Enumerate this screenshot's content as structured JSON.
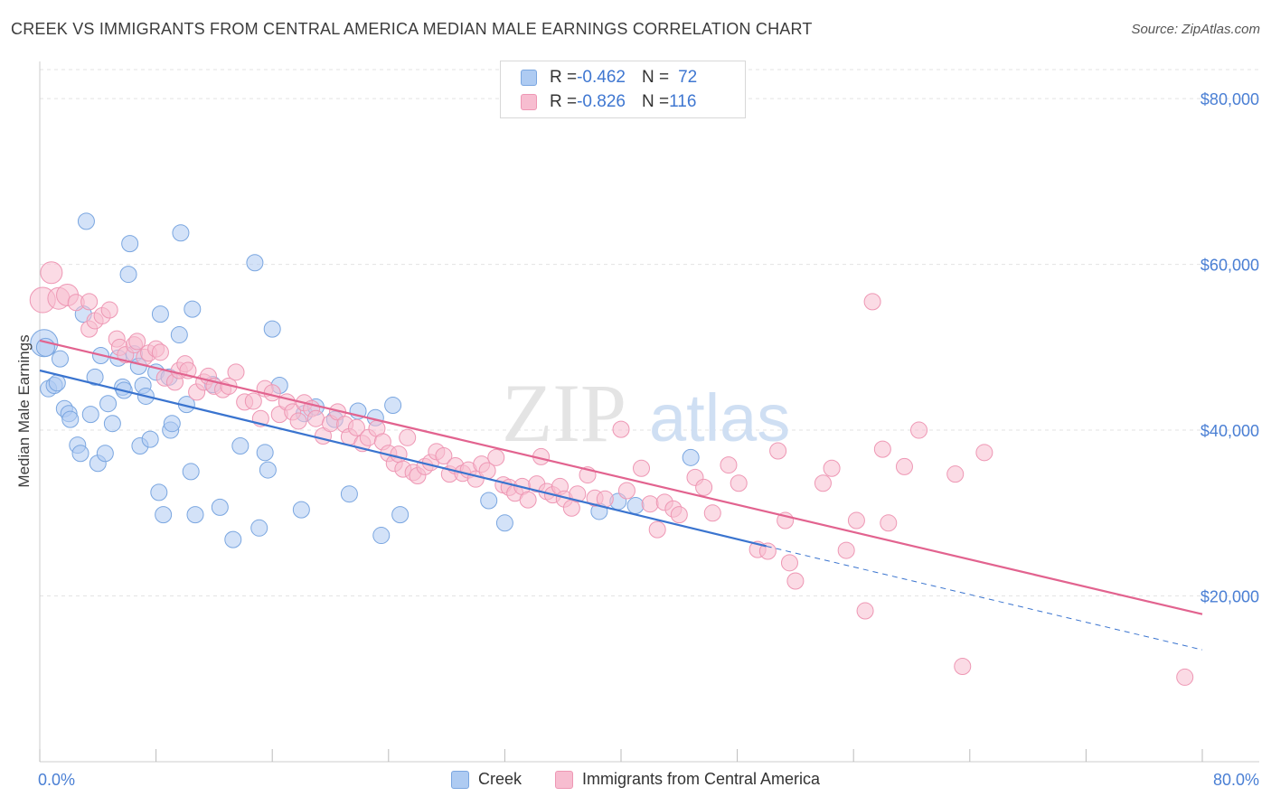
{
  "title": "CREEK VS IMMIGRANTS FROM CENTRAL AMERICA MEDIAN MALE EARNINGS CORRELATION CHART",
  "source": "Source: ZipAtlas.com",
  "watermark": {
    "zip": "ZIP",
    "atlas": "atlas"
  },
  "legend": {
    "rows": [
      {
        "r_label": "R = ",
        "r_value": "-0.462",
        "n_label": "N = ",
        "n_value": "72"
      },
      {
        "r_label": "R = ",
        "r_value": "-0.826",
        "n_label": "N = ",
        "n_value": "116"
      }
    ]
  },
  "colors": {
    "creek_fill": "#aecbf2",
    "creek_stroke": "#7aa6e0",
    "creek_line": "#3a74cf",
    "imm_fill": "#f7bdd0",
    "imm_stroke": "#ee97b4",
    "imm_line": "#e2638f",
    "grid": "#e3e3e3",
    "axis_text": "#4a7fd4"
  },
  "chart_data": {
    "type": "scatter",
    "title": "CREEK VS IMMIGRANTS FROM CENTRAL AMERICA MEDIAN MALE EARNINGS CORRELATION CHART",
    "xlabel": "",
    "ylabel": "Median Male Earnings",
    "x_tick_labels": [
      "0.0%",
      "80.0%"
    ],
    "y_tick_labels": [
      "$20,000",
      "$40,000",
      "$60,000",
      "$80,000"
    ],
    "y_ticks": [
      20000,
      40000,
      60000,
      80000
    ],
    "xlim": [
      0,
      80
    ],
    "ylim": [
      0,
      83500
    ],
    "grid": true,
    "legend_position": "top-center and bottom",
    "series": [
      {
        "name": "Creek",
        "r": -0.462,
        "n": 72,
        "trend": {
          "x0": 0,
          "y0": 47200,
          "x1": 50,
          "y1": 26000,
          "dashed_to_x": 80,
          "dashed_to_y": 13500
        },
        "points": [
          [
            0.3,
            50500
          ],
          [
            0.4,
            50000
          ],
          [
            0.6,
            45000
          ],
          [
            1.0,
            45400
          ],
          [
            1.2,
            45700
          ],
          [
            1.4,
            48600
          ],
          [
            1.7,
            42600
          ],
          [
            2.0,
            42000
          ],
          [
            2.1,
            41300
          ],
          [
            2.6,
            38200
          ],
          [
            2.8,
            37200
          ],
          [
            3.0,
            54000
          ],
          [
            3.2,
            65200
          ],
          [
            3.5,
            41900
          ],
          [
            3.8,
            46400
          ],
          [
            4.0,
            36000
          ],
          [
            4.2,
            49000
          ],
          [
            4.5,
            37200
          ],
          [
            4.7,
            43200
          ],
          [
            5.0,
            40800
          ],
          [
            5.4,
            48700
          ],
          [
            5.7,
            45200
          ],
          [
            5.8,
            44800
          ],
          [
            6.1,
            58800
          ],
          [
            6.2,
            62500
          ],
          [
            6.5,
            49200
          ],
          [
            6.8,
            47700
          ],
          [
            6.9,
            38100
          ],
          [
            7.1,
            45400
          ],
          [
            7.3,
            44100
          ],
          [
            7.6,
            38900
          ],
          [
            8.0,
            47000
          ],
          [
            8.2,
            32500
          ],
          [
            8.3,
            54000
          ],
          [
            8.5,
            29800
          ],
          [
            8.9,
            46400
          ],
          [
            9.0,
            40000
          ],
          [
            9.1,
            40800
          ],
          [
            9.6,
            51500
          ],
          [
            9.7,
            63800
          ],
          [
            10.1,
            43100
          ],
          [
            10.4,
            35000
          ],
          [
            10.5,
            54600
          ],
          [
            10.7,
            29800
          ],
          [
            11.9,
            45500
          ],
          [
            12.4,
            30700
          ],
          [
            13.3,
            26800
          ],
          [
            13.8,
            38100
          ],
          [
            14.8,
            60200
          ],
          [
            15.1,
            28200
          ],
          [
            15.5,
            37300
          ],
          [
            15.7,
            35200
          ],
          [
            16.0,
            52200
          ],
          [
            16.5,
            45400
          ],
          [
            18.0,
            30400
          ],
          [
            18.2,
            42000
          ],
          [
            19.0,
            42800
          ],
          [
            20.3,
            41300
          ],
          [
            21.3,
            32300
          ],
          [
            21.9,
            42300
          ],
          [
            23.1,
            41500
          ],
          [
            23.5,
            27300
          ],
          [
            24.3,
            43000
          ],
          [
            24.8,
            29800
          ],
          [
            30.9,
            31500
          ],
          [
            32.0,
            28800
          ],
          [
            38.5,
            30200
          ],
          [
            39.8,
            31400
          ],
          [
            41.0,
            30900
          ],
          [
            44.8,
            36700
          ]
        ]
      },
      {
        "name": "Immigrants from Central America",
        "r": -0.826,
        "n": 116,
        "trend": {
          "x0": 0,
          "y0": 50800,
          "x1": 80,
          "y1": 17800
        },
        "points": [
          [
            0.2,
            55700
          ],
          [
            0.8,
            59000
          ],
          [
            1.3,
            55900
          ],
          [
            1.9,
            56300
          ],
          [
            2.5,
            55400
          ],
          [
            3.4,
            55500
          ],
          [
            3.4,
            52200
          ],
          [
            3.8,
            53200
          ],
          [
            4.3,
            53800
          ],
          [
            4.8,
            54500
          ],
          [
            5.3,
            51000
          ],
          [
            5.5,
            50000
          ],
          [
            5.9,
            49100
          ],
          [
            6.5,
            50300
          ],
          [
            6.7,
            50700
          ],
          [
            7.2,
            48800
          ],
          [
            7.5,
            49300
          ],
          [
            8.0,
            49800
          ],
          [
            8.3,
            49400
          ],
          [
            8.6,
            46300
          ],
          [
            9.3,
            45800
          ],
          [
            9.6,
            47200
          ],
          [
            10.0,
            48000
          ],
          [
            10.2,
            47200
          ],
          [
            10.8,
            44600
          ],
          [
            11.3,
            45800
          ],
          [
            11.6,
            46500
          ],
          [
            12.0,
            45300
          ],
          [
            12.6,
            44900
          ],
          [
            13.0,
            45300
          ],
          [
            13.5,
            47000
          ],
          [
            14.1,
            43400
          ],
          [
            14.7,
            43500
          ],
          [
            15.2,
            41400
          ],
          [
            15.5,
            45000
          ],
          [
            16.0,
            44500
          ],
          [
            16.5,
            41900
          ],
          [
            17.0,
            43400
          ],
          [
            17.4,
            42200
          ],
          [
            17.8,
            41100
          ],
          [
            18.2,
            43300
          ],
          [
            18.7,
            42600
          ],
          [
            19.0,
            41400
          ],
          [
            19.5,
            39300
          ],
          [
            20.0,
            40800
          ],
          [
            20.5,
            42200
          ],
          [
            21.0,
            40700
          ],
          [
            21.3,
            39200
          ],
          [
            21.8,
            40300
          ],
          [
            22.2,
            38400
          ],
          [
            22.6,
            39100
          ],
          [
            23.2,
            40200
          ],
          [
            23.6,
            38600
          ],
          [
            24.0,
            37200
          ],
          [
            24.4,
            36000
          ],
          [
            24.7,
            37100
          ],
          [
            25.0,
            35300
          ],
          [
            25.3,
            39100
          ],
          [
            25.7,
            34900
          ],
          [
            26.0,
            34500
          ],
          [
            26.5,
            35600
          ],
          [
            26.9,
            36100
          ],
          [
            27.3,
            37400
          ],
          [
            27.8,
            36900
          ],
          [
            28.2,
            34700
          ],
          [
            28.6,
            35700
          ],
          [
            29.1,
            34800
          ],
          [
            29.5,
            35200
          ],
          [
            30.0,
            34100
          ],
          [
            30.4,
            35900
          ],
          [
            30.8,
            35100
          ],
          [
            31.4,
            36700
          ],
          [
            31.9,
            33400
          ],
          [
            32.3,
            33100
          ],
          [
            32.7,
            32400
          ],
          [
            33.2,
            33200
          ],
          [
            33.6,
            31600
          ],
          [
            34.2,
            33500
          ],
          [
            34.5,
            36800
          ],
          [
            34.9,
            32600
          ],
          [
            35.3,
            32200
          ],
          [
            35.8,
            33200
          ],
          [
            36.1,
            31700
          ],
          [
            36.6,
            30600
          ],
          [
            37.0,
            32300
          ],
          [
            37.7,
            34600
          ],
          [
            38.2,
            31800
          ],
          [
            38.9,
            31700
          ],
          [
            40.0,
            40100
          ],
          [
            40.4,
            32700
          ],
          [
            41.4,
            35400
          ],
          [
            42.0,
            31100
          ],
          [
            42.5,
            28000
          ],
          [
            43.0,
            31300
          ],
          [
            43.6,
            30500
          ],
          [
            44.0,
            29800
          ],
          [
            45.1,
            34300
          ],
          [
            45.7,
            33100
          ],
          [
            46.3,
            30000
          ],
          [
            47.4,
            35800
          ],
          [
            48.1,
            33600
          ],
          [
            49.4,
            25600
          ],
          [
            50.1,
            25400
          ],
          [
            50.8,
            37500
          ],
          [
            51.3,
            29100
          ],
          [
            51.6,
            24000
          ],
          [
            52.0,
            21800
          ],
          [
            53.9,
            33600
          ],
          [
            54.5,
            35400
          ],
          [
            55.5,
            25500
          ],
          [
            56.2,
            29100
          ],
          [
            56.8,
            18200
          ],
          [
            57.3,
            55500
          ],
          [
            58.0,
            37700
          ],
          [
            58.4,
            28800
          ],
          [
            59.5,
            35600
          ],
          [
            60.5,
            40000
          ],
          [
            63.0,
            34700
          ],
          [
            63.5,
            11500
          ],
          [
            65.0,
            37300
          ],
          [
            78.8,
            10200
          ]
        ]
      }
    ]
  }
}
